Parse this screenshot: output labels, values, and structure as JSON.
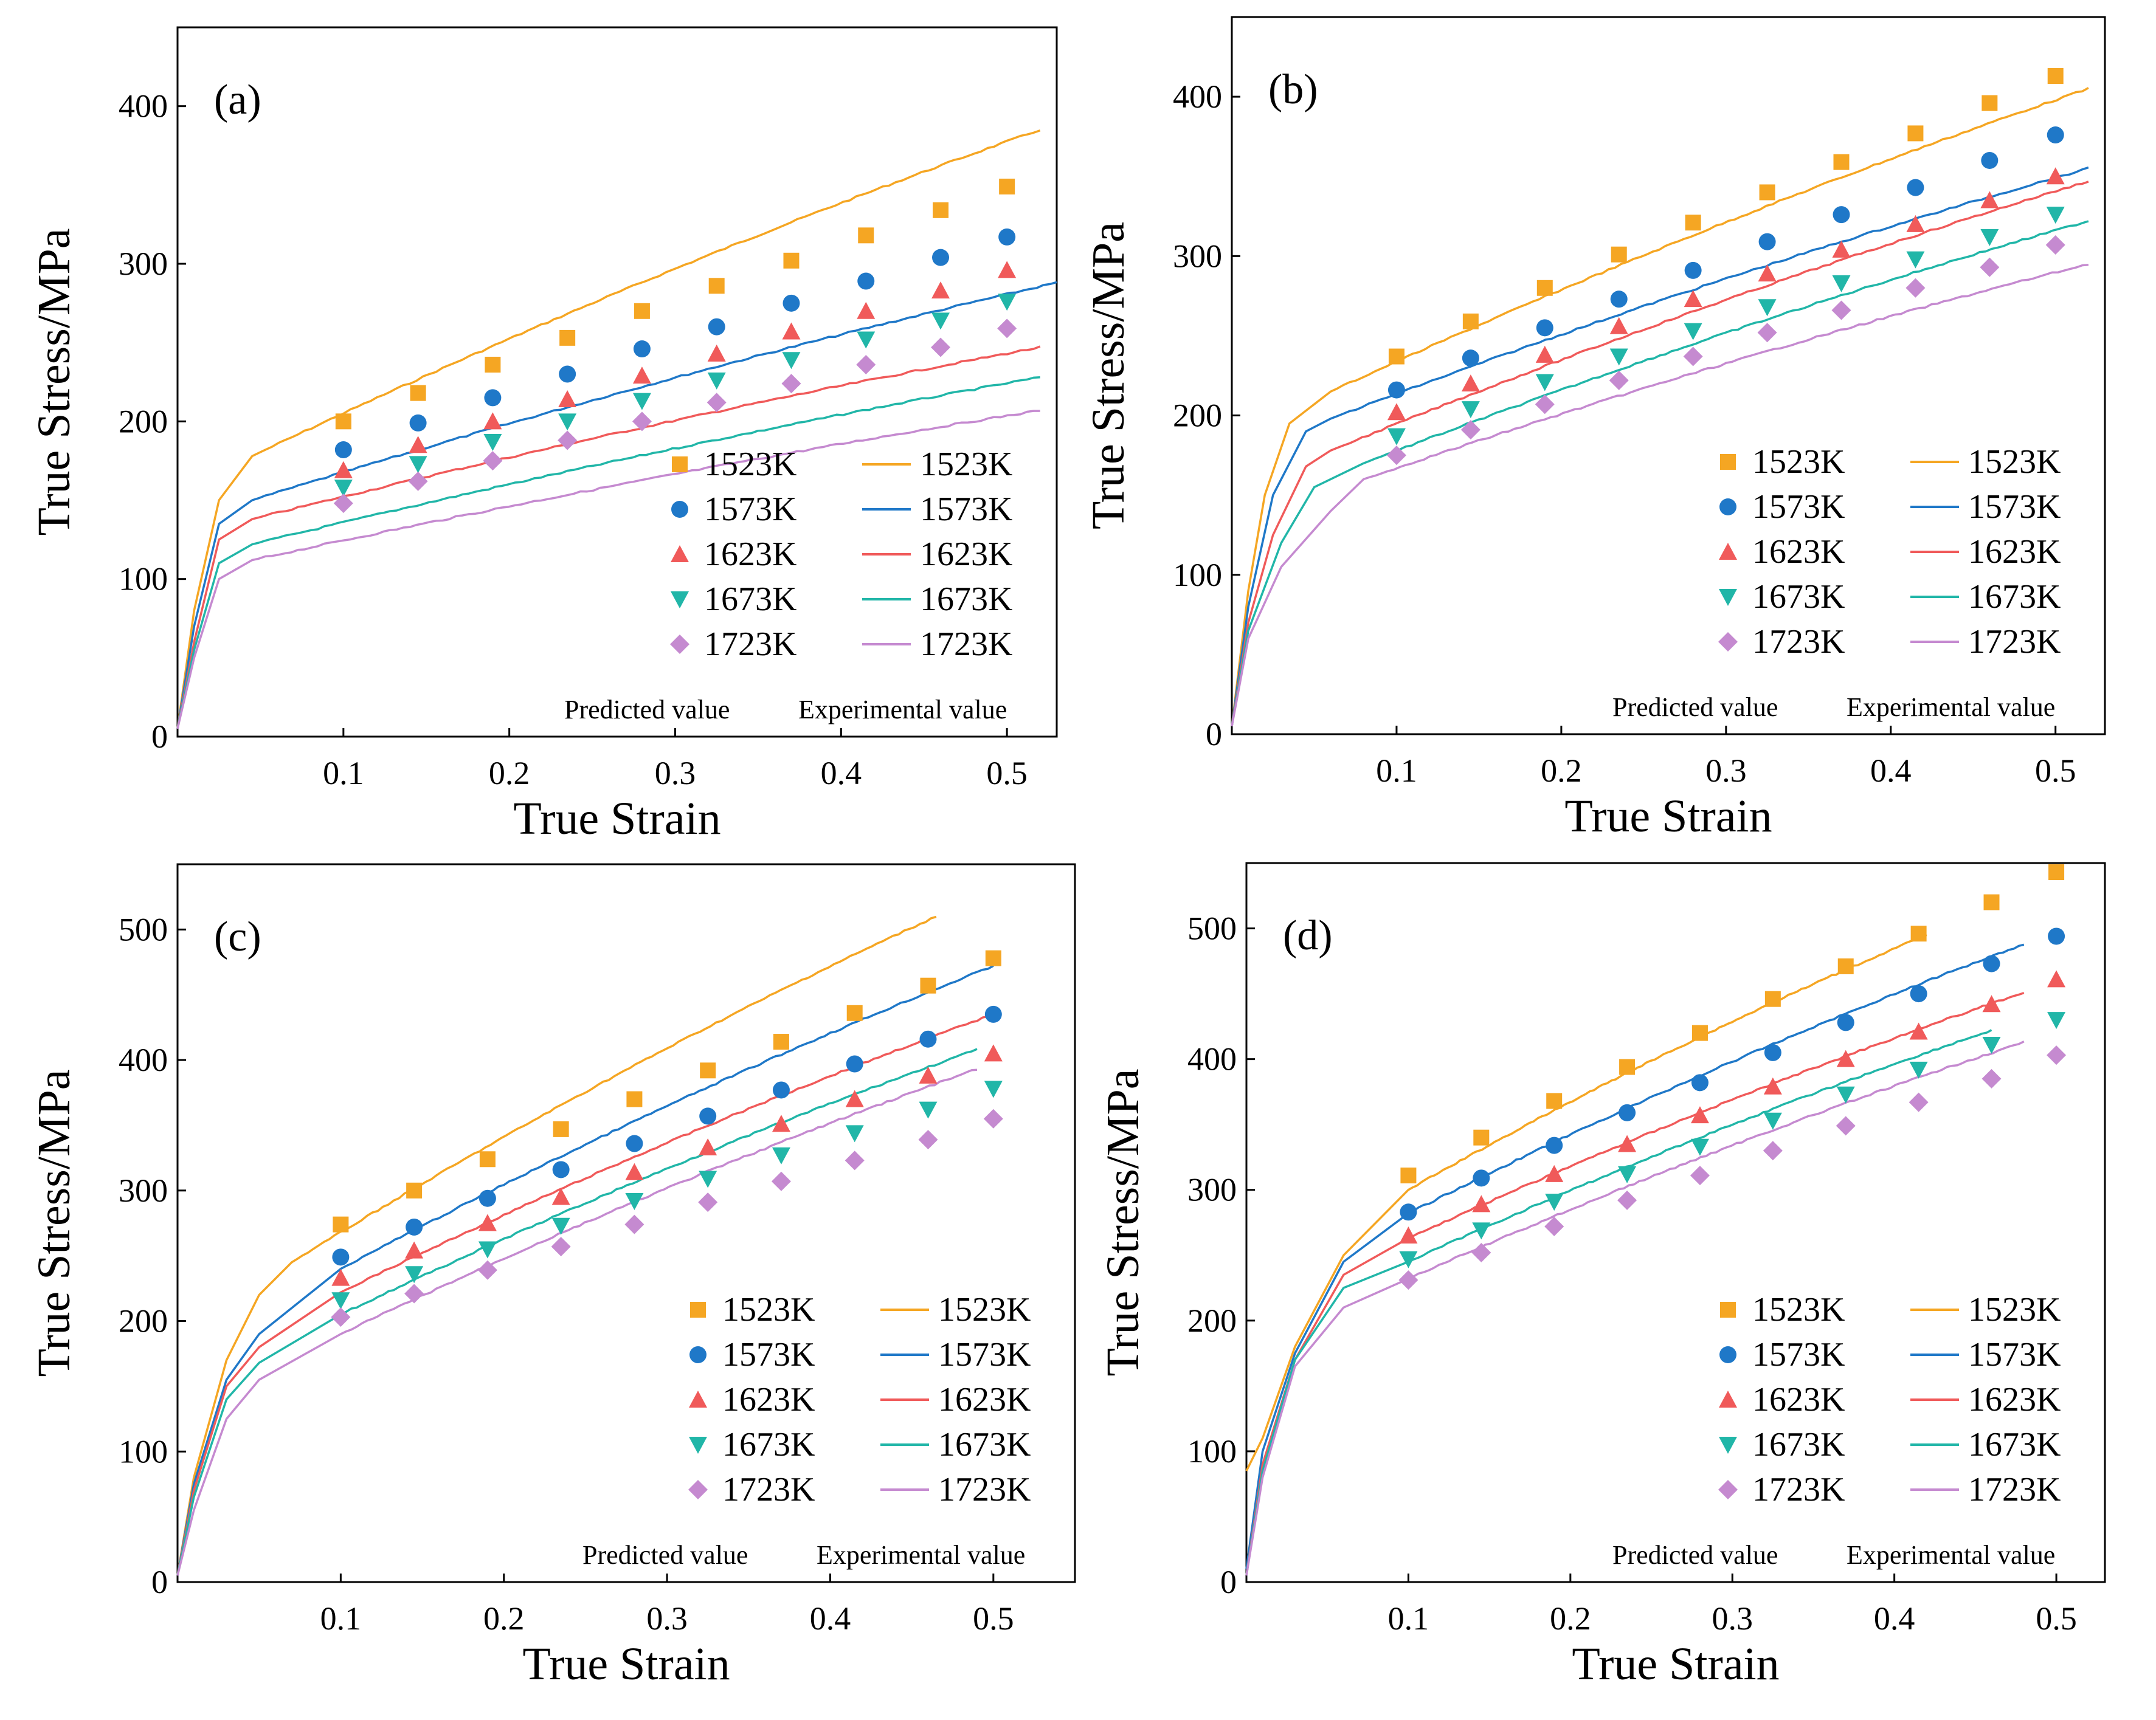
{
  "colors": {
    "1523K": "#f5a623",
    "1573K": "#1f78c8",
    "1623K": "#f05a5a",
    "1673K": "#21b6a8",
    "1723K": "#c58ad0"
  },
  "chart_data": [
    {
      "type": "line+scatter",
      "panel_label": "(a)",
      "xlabel": "True Strain",
      "ylabel": "True Stress/MPa",
      "xlim": [
        0,
        0.53
      ],
      "ylim": [
        0,
        450
      ],
      "xticks": [
        0.1,
        0.2,
        0.3,
        0.4,
        0.5
      ],
      "yticks": [
        0,
        100,
        200,
        300,
        400
      ],
      "legend_captions": {
        "predicted": "Predicted value",
        "experimental": "Experimental value"
      },
      "temperatures": [
        "1523K",
        "1573K",
        "1623K",
        "1673K",
        "1723K"
      ],
      "predicted_x": [
        0.1,
        0.145,
        0.19,
        0.235,
        0.28,
        0.325,
        0.37,
        0.415,
        0.46,
        0.5
      ],
      "predicted": {
        "1523K": [
          200,
          218,
          236,
          253,
          270,
          286,
          302,
          318,
          334,
          349
        ],
        "1573K": [
          182,
          199,
          215,
          230,
          246,
          260,
          275,
          289,
          304,
          317
        ],
        "1623K": [
          169,
          185,
          200,
          214,
          229,
          243,
          257,
          270,
          283,
          296
        ],
        "1673K": [
          158,
          173,
          187,
          200,
          213,
          226,
          239,
          252,
          264,
          276
        ],
        "1723K": [
          148,
          162,
          175,
          188,
          200,
          212,
          224,
          236,
          247,
          259
        ]
      },
      "experimental": {
        "1523K": {
          "knee": [
            [
              0,
              5
            ],
            [
              0.01,
              80
            ],
            [
              0.025,
              150
            ],
            [
              0.045,
              178
            ]
          ],
          "linear": [
            0.045,
            178,
            0.52,
            385
          ]
        },
        "1573K": {
          "knee": [
            [
              0,
              5
            ],
            [
              0.01,
              70
            ],
            [
              0.025,
              135
            ],
            [
              0.045,
              150
            ]
          ],
          "linear": [
            0.045,
            150,
            0.53,
            288
          ]
        },
        "1623K": {
          "knee": [
            [
              0,
              5
            ],
            [
              0.01,
              60
            ],
            [
              0.025,
              125
            ],
            [
              0.045,
              138
            ]
          ],
          "linear": [
            0.045,
            138,
            0.52,
            247
          ]
        },
        "1673K": {
          "knee": [
            [
              0,
              5
            ],
            [
              0.01,
              55
            ],
            [
              0.025,
              110
            ],
            [
              0.045,
              122
            ]
          ],
          "linear": [
            0.045,
            122,
            0.52,
            228
          ]
        },
        "1723K": {
          "knee": [
            [
              0,
              5
            ],
            [
              0.01,
              50
            ],
            [
              0.025,
              100
            ],
            [
              0.045,
              112
            ]
          ],
          "linear": [
            0.045,
            112,
            0.52,
            207
          ]
        }
      }
    },
    {
      "type": "line+scatter",
      "panel_label": "(b)",
      "xlabel": "True Strain",
      "ylabel": "True Stress/MPa",
      "xlim": [
        0,
        0.53
      ],
      "ylim": [
        0,
        450
      ],
      "xticks": [
        0.1,
        0.2,
        0.3,
        0.4,
        0.5
      ],
      "yticks": [
        0,
        100,
        200,
        300,
        400
      ],
      "legend_captions": {
        "predicted": "Predicted value",
        "experimental": "Experimental value"
      },
      "temperatures": [
        "1523K",
        "1573K",
        "1623K",
        "1673K",
        "1723K"
      ],
      "predicted_x": [
        0.1,
        0.145,
        0.19,
        0.235,
        0.28,
        0.325,
        0.37,
        0.415,
        0.46,
        0.5
      ],
      "predicted": {
        "1523K": [
          237,
          259,
          280,
          301,
          321,
          340,
          359,
          377,
          396,
          413
        ],
        "1573K": [
          216,
          236,
          255,
          273,
          291,
          309,
          326,
          343,
          360,
          376
        ],
        "1623K": [
          202,
          220,
          238,
          256,
          273,
          289,
          304,
          320,
          335,
          350
        ],
        "1673K": [
          187,
          204,
          221,
          237,
          253,
          268,
          283,
          298,
          312,
          326
        ],
        "1723K": [
          175,
          191,
          207,
          222,
          237,
          252,
          266,
          280,
          293,
          307
        ]
      },
      "experimental": {
        "1523K": {
          "knee": [
            [
              0,
              5
            ],
            [
              0.01,
              90
            ],
            [
              0.02,
              150
            ],
            [
              0.035,
              195
            ],
            [
              0.06,
              215
            ]
          ],
          "linear": [
            0.06,
            215,
            0.52,
            405
          ]
        },
        "1573K": {
          "knee": [
            [
              0,
              5
            ],
            [
              0.01,
              80
            ],
            [
              0.025,
              150
            ],
            [
              0.045,
              190
            ],
            [
              0.06,
              198
            ]
          ],
          "linear": [
            0.06,
            198,
            0.52,
            355
          ]
        },
        "1623K": {
          "knee": [
            [
              0,
              5
            ],
            [
              0.01,
              70
            ],
            [
              0.025,
              125
            ],
            [
              0.045,
              168
            ],
            [
              0.06,
              178
            ]
          ],
          "linear": [
            0.06,
            178,
            0.52,
            347
          ]
        },
        "1673K": {
          "knee": [
            [
              0,
              5
            ],
            [
              0.01,
              65
            ],
            [
              0.03,
              120
            ],
            [
              0.05,
              155
            ],
            [
              0.08,
              170
            ]
          ],
          "linear": [
            0.08,
            170,
            0.52,
            322
          ]
        },
        "1723K": {
          "knee": [
            [
              0,
              5
            ],
            [
              0.01,
              60
            ],
            [
              0.03,
              105
            ],
            [
              0.06,
              140
            ],
            [
              0.08,
              160
            ]
          ],
          "linear": [
            0.08,
            160,
            0.52,
            295
          ]
        }
      }
    },
    {
      "type": "line+scatter",
      "panel_label": "(c)",
      "xlabel": "True Strain",
      "ylabel": "True Stress/MPa",
      "xlim": [
        0,
        0.55
      ],
      "ylim": [
        0,
        550
      ],
      "xticks": [
        0.1,
        0.2,
        0.3,
        0.4,
        0.5
      ],
      "yticks": [
        0,
        100,
        200,
        300,
        400,
        500
      ],
      "legend_captions": {
        "predicted": "Predicted value",
        "experimental": "Experimental value"
      },
      "temperatures": [
        "1523K",
        "1573K",
        "1623K",
        "1673K",
        "1723K"
      ],
      "predicted_x": [
        0.1,
        0.145,
        0.19,
        0.235,
        0.28,
        0.325,
        0.37,
        0.415,
        0.46,
        0.5
      ],
      "predicted": {
        "1523K": [
          274,
          300,
          324,
          347,
          370,
          392,
          414,
          436,
          457,
          478
        ],
        "1573K": [
          249,
          272,
          294,
          316,
          336,
          357,
          377,
          397,
          416,
          435
        ],
        "1623K": [
          233,
          254,
          275,
          295,
          314,
          333,
          351,
          370,
          388,
          405
        ],
        "1673K": [
          216,
          236,
          255,
          273,
          292,
          309,
          327,
          344,
          362,
          378
        ],
        "1723K": [
          203,
          221,
          239,
          257,
          274,
          291,
          307,
          323,
          339,
          355
        ]
      },
      "experimental": {
        "1523K": {
          "knee": [
            [
              0,
              5
            ],
            [
              0.01,
              80
            ],
            [
              0.03,
              170
            ],
            [
              0.05,
              220
            ],
            [
              0.07,
              245
            ]
          ],
          "linear": [
            0.07,
            245,
            0.465,
            510
          ]
        },
        "1573K": {
          "knee": [
            [
              0,
              5
            ],
            [
              0.01,
              75
            ],
            [
              0.03,
              155
            ],
            [
              0.05,
              190
            ],
            [
              0.1,
              240
            ]
          ],
          "linear": [
            0.1,
            240,
            0.5,
            472
          ]
        },
        "1623K": {
          "knee": [
            [
              0,
              5
            ],
            [
              0.01,
              70
            ],
            [
              0.03,
              150
            ],
            [
              0.05,
              180
            ],
            [
              0.1,
              222
            ]
          ],
          "linear": [
            0.1,
            222,
            0.5,
            435
          ]
        },
        "1673K": {
          "knee": [
            [
              0,
              5
            ],
            [
              0.01,
              65
            ],
            [
              0.03,
              140
            ],
            [
              0.05,
              168
            ],
            [
              0.1,
              205
            ]
          ],
          "linear": [
            0.1,
            205,
            0.49,
            408
          ]
        },
        "1723K": {
          "knee": [
            [
              0,
              5
            ],
            [
              0.01,
              55
            ],
            [
              0.03,
              125
            ],
            [
              0.05,
              155
            ],
            [
              0.1,
              190
            ]
          ],
          "linear": [
            0.1,
            190,
            0.49,
            393
          ]
        }
      }
    },
    {
      "type": "line+scatter",
      "panel_label": "(d)",
      "xlabel": "True Strain",
      "ylabel": "True Stress/MPa",
      "xlim": [
        0,
        0.53
      ],
      "ylim": [
        0,
        550
      ],
      "xticks": [
        0.1,
        0.2,
        0.3,
        0.4,
        0.5
      ],
      "yticks": [
        0,
        100,
        200,
        300,
        400,
        500
      ],
      "legend_captions": {
        "predicted": "Predicted value",
        "experimental": "Experimental value"
      },
      "temperatures": [
        "1523K",
        "1573K",
        "1623K",
        "1673K",
        "1723K"
      ],
      "predicted_x": [
        0.1,
        0.145,
        0.19,
        0.235,
        0.28,
        0.325,
        0.37,
        0.415,
        0.46,
        0.5
      ],
      "predicted": {
        "1523K": [
          311,
          340,
          368,
          394,
          420,
          446,
          471,
          496,
          520,
          543
        ],
        "1573K": [
          283,
          309,
          334,
          359,
          382,
          405,
          428,
          450,
          473,
          494
        ],
        "1623K": [
          265,
          289,
          312,
          335,
          357,
          379,
          400,
          421,
          442,
          461
        ],
        "1673K": [
          247,
          269,
          291,
          312,
          333,
          353,
          373,
          392,
          411,
          430
        ],
        "1723K": [
          231,
          252,
          272,
          292,
          311,
          330,
          349,
          367,
          385,
          403
        ]
      },
      "experimental": {
        "1523K": {
          "knee": [
            [
              0,
              85
            ],
            [
              0.01,
              110
            ],
            [
              0.03,
              180
            ],
            [
              0.06,
              250
            ],
            [
              0.1,
              300
            ]
          ],
          "linear": [
            0.1,
            300,
            0.42,
            495
          ]
        },
        "1573K": {
          "knee": [
            [
              0,
              10
            ],
            [
              0.01,
              100
            ],
            [
              0.03,
              175
            ],
            [
              0.06,
              245
            ],
            [
              0.1,
              282
            ]
          ],
          "linear": [
            0.1,
            282,
            0.48,
            488
          ]
        },
        "1623K": {
          "knee": [
            [
              0,
              5
            ],
            [
              0.01,
              90
            ],
            [
              0.03,
              170
            ],
            [
              0.06,
              235
            ],
            [
              0.1,
              263
            ]
          ],
          "linear": [
            0.1,
            263,
            0.48,
            451
          ]
        },
        "1673K": {
          "knee": [
            [
              0,
              5
            ],
            [
              0.01,
              85
            ],
            [
              0.03,
              170
            ],
            [
              0.06,
              225
            ],
            [
              0.1,
              245
            ]
          ],
          "linear": [
            0.1,
            245,
            0.46,
            422
          ]
        },
        "1723K": {
          "knee": [
            [
              0,
              5
            ],
            [
              0.01,
              80
            ],
            [
              0.03,
              165
            ],
            [
              0.06,
              210
            ],
            [
              0.1,
              232
            ]
          ],
          "linear": [
            0.1,
            232,
            0.48,
            413
          ]
        }
      }
    }
  ]
}
